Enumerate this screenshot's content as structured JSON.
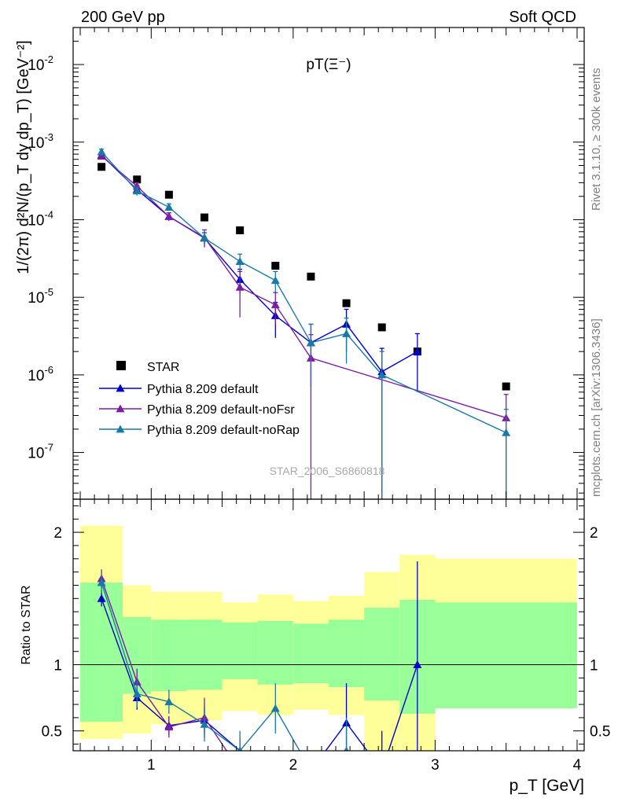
{
  "header": {
    "left": "200 GeV pp",
    "right": "Soft QCD"
  },
  "side_labels": {
    "rivet": "Rivet 3.1.10, ≥ 300k events",
    "mcplots": "mcplots.cern.ch [arXiv:1306.3436]"
  },
  "watermark": "STAR_2006_S6860818",
  "plot_title": "pT(Ξ⁻)",
  "chart_data": {
    "type": "scatter",
    "title": "pT(Ξ⁻)",
    "xlabel": "p_T [GeV]",
    "ylabel": "1/(2π) d²N/(p_T dy dp_T) [GeV⁻²]",
    "ratio_ylabel": "Ratio to STAR",
    "xlim": [
      0.45,
      4.05
    ],
    "ylim": [
      2.5e-08,
      0.03
    ],
    "yscale": "log",
    "ratio_ylim": [
      0.35,
      2.25
    ],
    "x_ticks": [
      "1",
      "2",
      "3",
      "4"
    ],
    "y_ticks": [
      "10^-7",
      "10^-6",
      "10^-5",
      "10^-4",
      "10^-3",
      "10^-2"
    ],
    "ratio_ticks": [
      "0.5",
      "1",
      "2"
    ],
    "legend_position": "bottom-left",
    "reference": {
      "name": "STAR",
      "color": "#000000",
      "x": [
        0.65,
        0.9,
        1.125,
        1.375,
        1.625,
        1.875,
        2.125,
        2.375,
        2.625,
        2.875,
        3.5
      ],
      "y": [
        0.00048,
        0.00033,
        0.00021,
        0.000107,
        7.3e-05,
        2.55e-05,
        1.85e-05,
        8.4e-06,
        4.1e-06,
        2e-06,
        7.1e-07
      ]
    },
    "bands": {
      "edges": [
        0.5,
        0.8,
        1.0,
        1.25,
        1.5,
        1.75,
        2.0,
        2.25,
        2.5,
        2.75,
        3.0,
        4.0
      ],
      "yellow_lo": [
        0.44,
        0.48,
        0.55,
        0.58,
        0.65,
        0.62,
        0.66,
        0.62,
        0.35,
        0.35,
        0.67
      ],
      "yellow_hi": [
        2.05,
        1.6,
        1.55,
        1.55,
        1.47,
        1.53,
        1.48,
        1.52,
        1.7,
        1.83,
        1.8
      ],
      "green_lo": [
        0.57,
        0.78,
        0.8,
        0.81,
        0.89,
        0.85,
        0.86,
        0.83,
        0.73,
        0.63,
        0.67
      ],
      "green_hi": [
        1.62,
        1.36,
        1.34,
        1.34,
        1.32,
        1.33,
        1.31,
        1.34,
        1.43,
        1.49,
        1.47
      ]
    },
    "series": [
      {
        "name": "Pythia 8.209 default",
        "color": "#0000cc",
        "x": [
          0.65,
          0.9,
          1.125,
          1.375,
          1.625,
          1.875,
          2.125,
          2.375,
          2.625,
          2.875
        ],
        "y": [
          0.00068,
          0.000245,
          0.00011,
          5.8e-05,
          1.7e-05,
          5.8e-06,
          2.6e-06,
          4.5e-06,
          1.1e-06,
          2e-06
        ],
        "err": [
          6e-05,
          3e-05,
          1.3e-05,
          1e-05,
          6e-06,
          2.8e-06,
          1.9e-06,
          2.5e-06,
          1.1e-06,
          1.4e-06
        ],
        "ratio_x": [
          0.65,
          0.9,
          1.125,
          1.375,
          1.625,
          1.875,
          2.125,
          2.375,
          2.625,
          2.875
        ],
        "ratio_y": [
          1.5,
          0.75,
          0.54,
          0.58,
          0.35,
          0.23,
          0.2,
          0.56,
          0.2,
          1.0
        ],
        "ratio_err": [
          0.06,
          0.09,
          0.07,
          0.1,
          0.1,
          0.1,
          0.15,
          0.3,
          0.3,
          0.78
        ]
      },
      {
        "name": "Pythia 8.209 default-noFsr",
        "color": "#7a1fa2",
        "x": [
          0.65,
          0.9,
          1.125,
          1.375,
          1.625,
          1.875,
          2.125,
          3.5
        ],
        "y": [
          0.00066,
          0.00027,
          0.00011,
          5.9e-05,
          1.35e-05,
          8e-06,
          1.65e-06,
          2.8e-07
        ],
        "err": [
          6e-05,
          3e-05,
          1.3e-05,
          1.5e-05,
          8e-06,
          3.5e-06,
          1.65e-06,
          2.8e-07
        ],
        "ratio_x": [
          0.65,
          0.9,
          1.125,
          1.375,
          1.625,
          1.875
        ],
        "ratio_y": [
          1.65,
          0.87,
          0.53,
          0.6,
          0.2,
          0.2
        ],
        "ratio_err": [
          0.07,
          0.1,
          0.08,
          0.15,
          0.1,
          0.1
        ]
      },
      {
        "name": "Pythia 8.209 default-noRap",
        "color": "#1a7aa6",
        "x": [
          0.65,
          0.9,
          1.125,
          1.375,
          1.625,
          1.875,
          2.125,
          2.375,
          2.625,
          3.5
        ],
        "y": [
          0.00075,
          0.000235,
          0.000145,
          5.8e-05,
          2.9e-05,
          1.65e-05,
          2.6e-06,
          3.4e-06,
          1e-06,
          1.8e-07
        ],
        "err": [
          6e-05,
          3e-05,
          1.5e-05,
          1e-05,
          7e-06,
          5e-06,
          1.9e-06,
          2e-06,
          1e-06,
          1.8e-07
        ],
        "ratio_x": [
          0.65,
          0.9,
          1.125,
          1.375,
          1.625,
          1.875,
          2.125,
          2.375
        ],
        "ratio_y": [
          1.62,
          0.78,
          0.72,
          0.55,
          0.35,
          0.67,
          0.2,
          0.35
        ],
        "ratio_err": [
          0.08,
          0.1,
          0.09,
          0.13,
          0.15,
          0.19,
          0.15,
          0.25
        ]
      }
    ]
  }
}
